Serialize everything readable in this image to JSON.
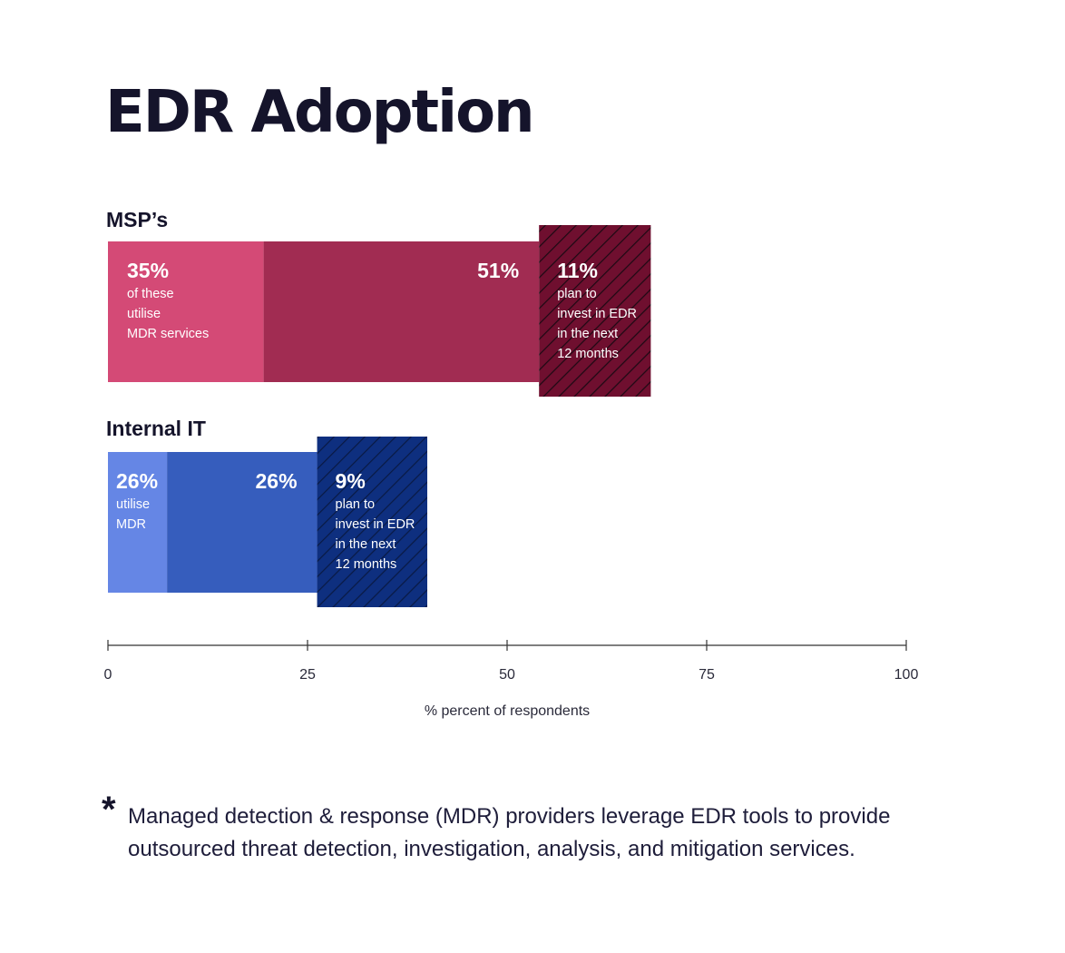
{
  "title": "EDR Adoption",
  "chart_data": {
    "type": "bar",
    "orientation": "horizontal",
    "stacked": true,
    "xlabel": "% percent of respondents",
    "xlim": [
      0,
      100
    ],
    "xticks": [
      0,
      25,
      50,
      75,
      100
    ],
    "groups": [
      {
        "label": "MSP’s",
        "colors": [
          "#d44a76",
          "#a12c52",
          "#6f0f2f"
        ],
        "segments": [
          {
            "start": 0,
            "end": 19.5
          },
          {
            "start": 19.5,
            "end": 54
          },
          {
            "start": 54,
            "end": 68,
            "hatched": true
          }
        ],
        "annotations": [
          {
            "value": "35%",
            "lines": [
              "of these",
              "utilise",
              "MDR services"
            ]
          },
          {
            "value": "51%",
            "lines": []
          },
          {
            "value": "11%",
            "lines": [
              "plan to",
              "invest in EDR",
              "in the next",
              "12 months"
            ]
          }
        ]
      },
      {
        "label": "Internal IT",
        "colors": [
          "#6586e5",
          "#365dbd",
          "#0e2f7f"
        ],
        "segments": [
          {
            "start": 0,
            "end": 7.4
          },
          {
            "start": 7.4,
            "end": 26.2
          },
          {
            "start": 26.2,
            "end": 40,
            "hatched": true
          }
        ],
        "annotations": [
          {
            "value": "26%",
            "lines": [
              "utilise",
              "MDR"
            ]
          },
          {
            "value": "26%",
            "lines": []
          },
          {
            "value": "9%",
            "lines": [
              "plan to",
              "invest in EDR",
              "in the next",
              "12 months"
            ]
          }
        ]
      }
    ]
  },
  "footnote": {
    "marker": "*",
    "text": "Managed detection & response (MDR) providers leverage EDR tools to provide outsourced threat detection, investigation, analysis, and mitigation services."
  }
}
